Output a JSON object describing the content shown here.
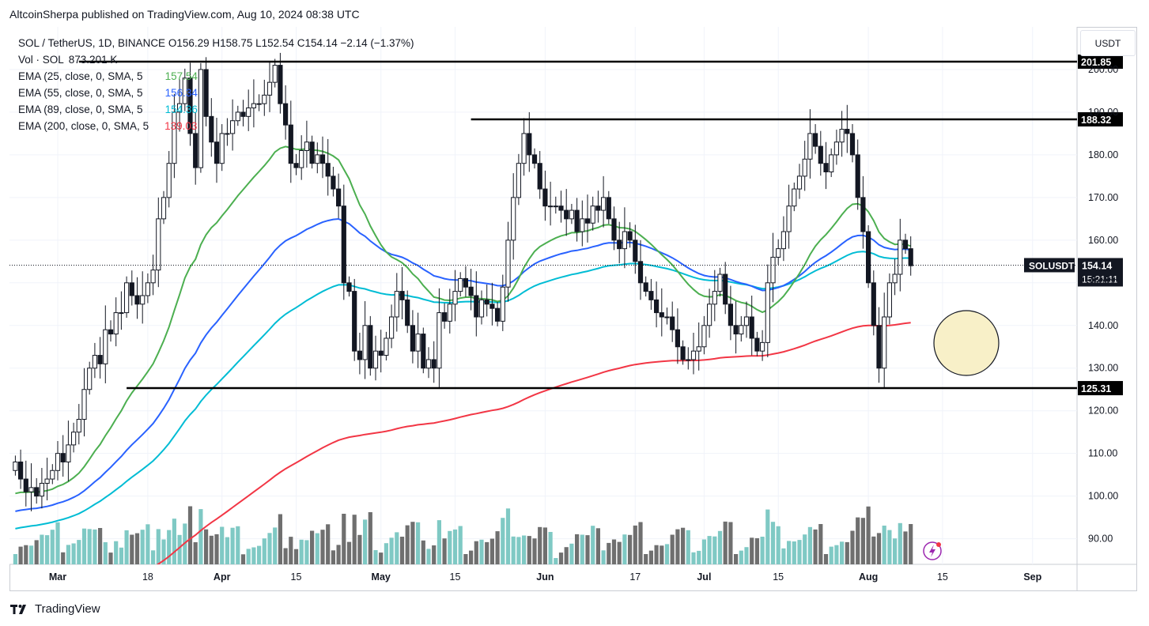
{
  "attribution": "AltcoinSherpa published on TradingView.com, Aug 10, 2024 08:38 UTC",
  "legend": {
    "main": "SOL / TetherUS, 1D, BINANCE  O156.29  H158.75  L152.54  C154.14  −2.14 (−1.37%)",
    "vol_label": "Vol · SOL",
    "vol_value": "873.201 K",
    "ema25_label": "EMA (25, close, 0, SMA, 5",
    "ema25_value": "157.54",
    "ema55_label": "EMA (55, close, 0, SMA, 5",
    "ema55_value": "156.34",
    "ema89_label": "EMA (89, close, 0, SMA, 5",
    "ema89_value": "154.36",
    "ema200_label": "EMA (200, close, 0, SMA, 5",
    "ema200_value": "139.03"
  },
  "unit_button": "USDT",
  "footer_brand": "TradingView",
  "colors": {
    "up": "#ffffff",
    "down": "#131722",
    "candle_border": "#131722",
    "ema25": "#4caf50",
    "ema55": "#2962ff",
    "ema89": "#00bcd4",
    "ema200": "#f23645",
    "vol_up": "#7fc9c4",
    "vol_down": "#6f6f6f",
    "highlight_circle": "#f8f0c8"
  },
  "chart_data": {
    "type": "candlestick",
    "symbol": "SOLUSDT",
    "ylim": [
      84,
      210
    ],
    "price_axis_ticks": [
      "90.00",
      "100.00",
      "110.00",
      "120.00",
      "130.00",
      "140.00",
      "150.00",
      "160.00",
      "170.00",
      "180.00",
      "190.00",
      "200.00"
    ],
    "price_axis_tick_values": [
      90,
      100,
      110,
      120,
      130,
      140,
      150,
      160,
      170,
      180,
      190,
      200
    ],
    "time_axis_labels": [
      "Mar",
      "18",
      "Apr",
      "15",
      "May",
      "15",
      "Jun",
      "17",
      "Jul",
      "15",
      "Aug",
      "15",
      "Sep"
    ],
    "time_axis_day_index": [
      0,
      17,
      31,
      45,
      61,
      75,
      92,
      109,
      122,
      136,
      153,
      167,
      184
    ],
    "bold_time_labels": [
      "Mar",
      "Apr",
      "May",
      "Jun",
      "Jul",
      "Aug",
      "Sep"
    ],
    "horizontal_levels": [
      {
        "price": 201.85,
        "label": "201.85",
        "start_day": 4
      },
      {
        "price": 188.32,
        "label": "188.32",
        "start_day": 78
      },
      {
        "price": 125.31,
        "label": "125.31",
        "start_day": 13
      }
    ],
    "last_price": {
      "price": 154.14,
      "label": "SOLUSDT",
      "value": "154.14",
      "countdown": "15:21:11"
    },
    "first_day_index": -8,
    "last_day_index": 162,
    "closes": [
      108,
      104,
      101,
      102,
      100,
      103,
      104,
      106,
      110,
      108,
      112,
      115,
      118,
      125,
      130,
      133,
      131,
      139,
      138,
      143,
      143,
      150,
      147,
      145,
      147,
      150,
      153,
      165,
      170,
      178,
      190,
      192,
      198,
      185,
      177,
      200,
      189,
      183,
      178,
      185,
      185,
      188,
      190,
      189,
      191,
      192,
      192,
      194,
      197,
      201,
      192,
      187,
      178,
      177,
      181,
      183,
      178,
      180,
      178,
      175,
      172,
      168,
      150,
      148,
      134,
      132,
      140,
      130,
      134,
      133,
      137,
      142,
      148,
      146,
      140,
      134,
      138,
      130,
      132,
      130,
      143,
      141,
      145,
      148,
      151,
      149,
      147,
      142,
      146,
      145,
      144,
      141,
      149,
      160,
      170,
      178,
      185,
      180,
      178,
      172,
      168,
      168,
      168,
      167,
      165,
      167,
      162,
      165,
      164,
      168,
      167,
      170,
      165,
      160,
      158,
      162,
      160,
      155,
      150,
      148,
      146,
      143,
      142,
      142,
      139,
      135,
      132,
      132,
      134,
      135,
      140,
      145,
      148,
      152,
      145,
      140,
      138,
      140,
      142,
      137,
      134,
      136,
      150,
      156,
      158,
      162,
      168,
      172,
      175,
      179,
      185,
      182,
      178,
      176,
      180,
      183,
      186,
      185,
      180,
      170,
      162,
      150,
      140,
      130,
      142,
      150,
      152,
      160,
      158,
      154
    ]
  }
}
